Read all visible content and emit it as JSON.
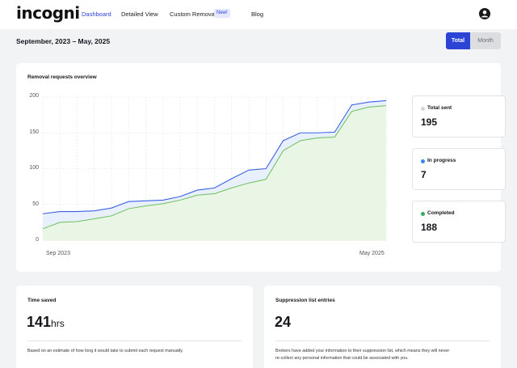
{
  "brand": {
    "logo_text": "incogni"
  },
  "nav": {
    "items": [
      {
        "label": "Dashboard",
        "active": true
      },
      {
        "label": "Detailed View",
        "active": false
      },
      {
        "label": "Custom Removals",
        "active": false
      },
      {
        "label": "Blog",
        "active": false
      }
    ],
    "new_badge": "New!"
  },
  "account": {
    "icon": "user-avatar-icon"
  },
  "header": {
    "period": "September, 2023 – May, 2025",
    "toggle": {
      "total": "Total",
      "month": "Month",
      "selected": "Total"
    }
  },
  "overview": {
    "title": "Removal requests overview",
    "stats": [
      {
        "label": "Total sent",
        "value": "195",
        "color": "#d4d5d9"
      },
      {
        "label": "In progress",
        "value": "7",
        "color": "#3a86f0"
      },
      {
        "label": "Completed",
        "value": "188",
        "color": "#2fae5c"
      }
    ]
  },
  "chart_data": {
    "type": "area",
    "x_start_label": "Sep 2023",
    "x_end_label": "May 2025",
    "yticks": [
      0,
      50,
      100,
      150,
      200
    ],
    "ylim": [
      0,
      200
    ],
    "colors": {
      "total": "#3a62e0",
      "completed": "#6cc05a"
    },
    "series": [
      {
        "values": [
          37,
          40,
          40,
          41,
          45,
          54,
          55,
          56,
          61,
          70,
          73,
          86,
          98,
          100,
          139,
          150,
          150,
          151,
          189,
          193,
          195
        ]
      },
      {
        "values": [
          16,
          25,
          26,
          30,
          34,
          44,
          48,
          51,
          56,
          63,
          65,
          73,
          80,
          85,
          125,
          139,
          143,
          144,
          180,
          186,
          188
        ]
      }
    ]
  },
  "time_saved": {
    "title": "Time saved",
    "value": "141",
    "unit": "hrs",
    "description": "Based on an estimate of how long it would take to submit each request manually."
  },
  "suppression": {
    "title": "Suppression list entries",
    "value": "24",
    "description_line1": "Brokers have added your information to their suppression list, which means they will never",
    "description_line2": "re-collect any personal information that could be associated with you."
  }
}
